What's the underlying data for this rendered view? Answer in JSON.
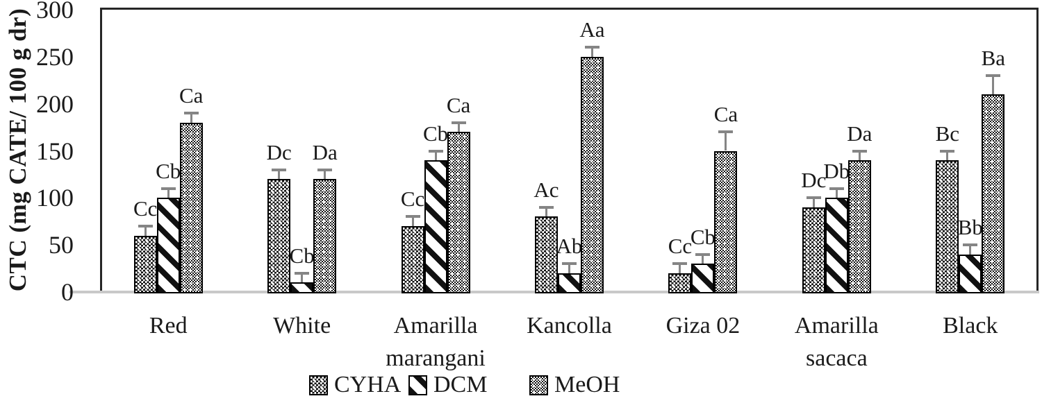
{
  "chart_data": {
    "type": "bar",
    "title": "",
    "ylabel": "CTC (mg CATE/ 100 g dr)",
    "xlabel": "",
    "ylim": [
      0,
      300
    ],
    "yticks": [
      0,
      50,
      100,
      150,
      200,
      250,
      300
    ],
    "grid": false,
    "legend_position": "bottom",
    "categories": [
      "Red",
      "White",
      "Amarilla marangani",
      "Kancolla",
      "Giza 02",
      "Amarilla sacaca",
      "Black"
    ],
    "categories_lines": [
      [
        "Red"
      ],
      [
        "White"
      ],
      [
        "Amarilla",
        "marangani"
      ],
      [
        "Kancolla"
      ],
      [
        "Giza 02"
      ],
      [
        "Amarilla",
        "sacaca"
      ],
      [
        "Black"
      ]
    ],
    "series": [
      {
        "name": "CYHA",
        "pattern": "dots-coarse",
        "values": [
          60,
          120,
          70,
          80,
          20,
          90,
          140
        ],
        "errors": [
          10,
          10,
          10,
          10,
          10,
          10,
          10
        ],
        "labels": [
          "Cc",
          "Dc",
          "Cc",
          "Ac",
          "Cc",
          "Dc",
          "Bc"
        ]
      },
      {
        "name": "DCM",
        "pattern": "diagonal-stripes",
        "values": [
          100,
          10,
          140,
          20,
          30,
          100,
          40
        ],
        "errors": [
          10,
          10,
          10,
          10,
          10,
          10,
          10
        ],
        "labels": [
          "Cb",
          "Cb",
          "Cb",
          "Ab",
          "Cb",
          "Db",
          "Bb"
        ]
      },
      {
        "name": "MeOH",
        "pattern": "dots-fine",
        "values": [
          180,
          120,
          170,
          250,
          150,
          140,
          210
        ],
        "errors": [
          10,
          10,
          10,
          10,
          20,
          10,
          20
        ],
        "labels": [
          "Ca",
          "Da",
          "Ca",
          "Aa",
          "Ca",
          "Da",
          "Ba"
        ]
      }
    ],
    "colors": {
      "bar_fill": "#ffffff",
      "bar_border": "#000000",
      "error_bar": "#858585",
      "axis_frame": "#262626",
      "baseline": "#c9c9c9",
      "text": "#1a1a1a"
    }
  }
}
